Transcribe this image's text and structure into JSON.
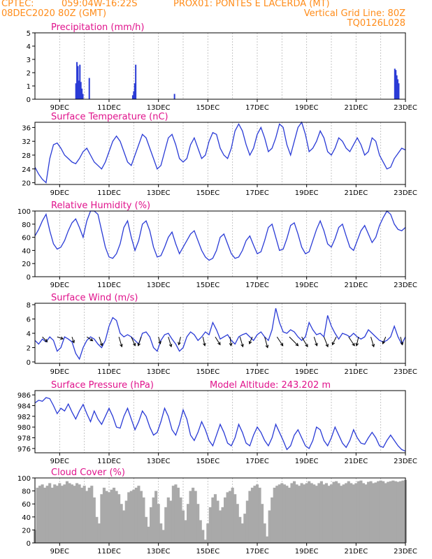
{
  "header": {
    "source": "CPTEC:",
    "coords": "059:04W-16:22S",
    "station": "PROX01: PONTES E LACERDA (MT)",
    "run": "08DEC2020 80Z (GMT)",
    "grid_note": "Vertical Grid Line: 80Z",
    "model_code": "TQ0126L028"
  },
  "colors": {
    "header": "#ff8c1a",
    "title": "#e0138c",
    "series": "#2a3bd6",
    "cloud": "#a9a9a9",
    "wind_arrow": "#000000"
  },
  "x_tick_labels": [
    "9DEC",
    "11DEC",
    "13DEC",
    "15DEC",
    "17DEC",
    "19DEC",
    "21DEC",
    "23DEC"
  ],
  "x_axis": {
    "start": "08DEC2020",
    "end": "23DEC2020",
    "grid_every_days": 1
  },
  "chart_data": [
    {
      "id": "precip",
      "type": "bar",
      "title": "Precipitation (mm/h)",
      "ylim": [
        0,
        5
      ],
      "yticks": [
        0,
        1,
        2,
        3,
        4,
        5
      ],
      "x_days": [
        1.66,
        1.7,
        1.74,
        1.78,
        1.82,
        1.86,
        1.9,
        1.94,
        2.2,
        3.96,
        4.0,
        4.04,
        4.08,
        5.65,
        14.57,
        14.61,
        14.65,
        14.69,
        14.73
      ],
      "values": [
        1.2,
        2.8,
        2.5,
        1.4,
        2.6,
        1.3,
        0.8,
        0.4,
        1.6,
        0.3,
        0.6,
        1.2,
        2.6,
        0.4,
        2.3,
        2.2,
        1.8,
        1.5,
        1.2
      ]
    },
    {
      "id": "temp",
      "type": "line",
      "title": "Surface Temperature (nC)",
      "ylim": [
        19.5,
        37.5
      ],
      "yticks": [
        20,
        24,
        28,
        32,
        36
      ],
      "x_days": [
        0,
        0.15,
        0.3,
        0.45,
        0.6,
        0.75,
        0.9,
        1.05,
        1.2,
        1.35,
        1.5,
        1.65,
        1.8,
        1.95,
        2.1,
        2.25,
        2.4,
        2.55,
        2.7,
        2.85,
        3.0,
        3.15,
        3.3,
        3.45,
        3.6,
        3.75,
        3.9,
        4.05,
        4.2,
        4.35,
        4.5,
        4.65,
        4.8,
        4.95,
        5.1,
        5.25,
        5.4,
        5.55,
        5.7,
        5.85,
        6.0,
        6.15,
        6.3,
        6.45,
        6.6,
        6.75,
        6.9,
        7.05,
        7.2,
        7.35,
        7.5,
        7.65,
        7.8,
        7.95,
        8.1,
        8.25,
        8.4,
        8.55,
        8.7,
        8.85,
        9.0,
        9.15,
        9.3,
        9.45,
        9.6,
        9.75,
        9.9,
        10.05,
        10.2,
        10.35,
        10.5,
        10.65,
        10.8,
        10.95,
        11.1,
        11.25,
        11.4,
        11.55,
        11.7,
        11.85,
        12.0,
        12.15,
        12.3,
        12.45,
        12.6,
        12.75,
        12.9,
        13.05,
        13.2,
        13.35,
        13.5,
        13.65,
        13.8,
        13.95,
        14.1,
        14.25,
        14.4,
        14.55,
        14.7,
        14.85,
        15.0
      ],
      "values": [
        24.5,
        22.5,
        21,
        20,
        27,
        31,
        31.5,
        30,
        28,
        27,
        26,
        25.5,
        27,
        29,
        30,
        28,
        26,
        25,
        24,
        26,
        29,
        32,
        33.5,
        32,
        29,
        26,
        25,
        28,
        31,
        34,
        33,
        30,
        27,
        24,
        25,
        29,
        33,
        34,
        31,
        27,
        26,
        27,
        31,
        33,
        30,
        27,
        28,
        32,
        34.5,
        34,
        30,
        28,
        27,
        30,
        35,
        37,
        35,
        31,
        28,
        30,
        34,
        36,
        33,
        29,
        30,
        33,
        37,
        36,
        31,
        28,
        32,
        36,
        37.5,
        34,
        29,
        30,
        32,
        35,
        33,
        29,
        28,
        30,
        33,
        32,
        30,
        29,
        31,
        33,
        31,
        28,
        29,
        33,
        32,
        28,
        26,
        24,
        24.5,
        27,
        28.5,
        30,
        29.5
      ]
    },
    {
      "id": "rh",
      "type": "line",
      "title": "Relative Humidity (%)",
      "ylim": [
        0,
        100
      ],
      "yticks": [
        0,
        20,
        40,
        60,
        80,
        100
      ],
      "x_days": [
        0,
        0.15,
        0.3,
        0.45,
        0.6,
        0.75,
        0.9,
        1.05,
        1.2,
        1.35,
        1.5,
        1.65,
        1.8,
        1.95,
        2.1,
        2.25,
        2.4,
        2.55,
        2.7,
        2.85,
        3.0,
        3.15,
        3.3,
        3.45,
        3.6,
        3.75,
        3.9,
        4.05,
        4.2,
        4.35,
        4.5,
        4.65,
        4.8,
        4.95,
        5.1,
        5.25,
        5.4,
        5.55,
        5.7,
        5.85,
        6.0,
        6.15,
        6.3,
        6.45,
        6.6,
        6.75,
        6.9,
        7.05,
        7.2,
        7.35,
        7.5,
        7.65,
        7.8,
        7.95,
        8.1,
        8.25,
        8.4,
        8.55,
        8.7,
        8.85,
        9.0,
        9.15,
        9.3,
        9.45,
        9.6,
        9.75,
        9.9,
        10.05,
        10.2,
        10.35,
        10.5,
        10.65,
        10.8,
        10.95,
        11.1,
        11.25,
        11.4,
        11.55,
        11.7,
        11.85,
        12.0,
        12.15,
        12.3,
        12.45,
        12.6,
        12.75,
        12.9,
        13.05,
        13.2,
        13.35,
        13.5,
        13.65,
        13.8,
        13.95,
        14.1,
        14.25,
        14.4,
        14.55,
        14.7,
        14.85,
        15.0
      ],
      "values": [
        62,
        72,
        85,
        95,
        70,
        50,
        42,
        45,
        55,
        70,
        82,
        88,
        75,
        60,
        85,
        100,
        100,
        95,
        70,
        45,
        30,
        28,
        35,
        50,
        75,
        85,
        60,
        40,
        55,
        80,
        85,
        70,
        45,
        30,
        32,
        45,
        60,
        68,
        50,
        35,
        45,
        55,
        65,
        70,
        55,
        40,
        30,
        25,
        28,
        40,
        60,
        65,
        50,
        35,
        28,
        30,
        40,
        55,
        62,
        48,
        35,
        38,
        55,
        75,
        80,
        60,
        40,
        42,
        58,
        78,
        82,
        65,
        45,
        35,
        38,
        55,
        72,
        85,
        70,
        50,
        45,
        58,
        75,
        80,
        62,
        45,
        40,
        55,
        70,
        78,
        65,
        52,
        60,
        78,
        90,
        100,
        95,
        80,
        72,
        70,
        75
      ]
    },
    {
      "id": "wind",
      "type": "line",
      "title": "Surface Wind (m/s)",
      "ylim": [
        -0.2,
        8.2
      ],
      "yticks": [
        0,
        2,
        4,
        6,
        8
      ],
      "x_days": [
        0,
        0.15,
        0.3,
        0.45,
        0.6,
        0.75,
        0.9,
        1.05,
        1.2,
        1.35,
        1.5,
        1.65,
        1.8,
        1.95,
        2.1,
        2.25,
        2.4,
        2.55,
        2.7,
        2.85,
        3.0,
        3.15,
        3.3,
        3.45,
        3.6,
        3.75,
        3.9,
        4.05,
        4.2,
        4.35,
        4.5,
        4.65,
        4.8,
        4.95,
        5.1,
        5.25,
        5.4,
        5.55,
        5.7,
        5.85,
        6.0,
        6.15,
        6.3,
        6.45,
        6.6,
        6.75,
        6.9,
        7.05,
        7.2,
        7.35,
        7.5,
        7.65,
        7.8,
        7.95,
        8.1,
        8.25,
        8.4,
        8.55,
        8.7,
        8.85,
        9.0,
        9.15,
        9.3,
        9.45,
        9.6,
        9.75,
        9.9,
        10.05,
        10.2,
        10.35,
        10.5,
        10.65,
        10.8,
        10.95,
        11.1,
        11.25,
        11.4,
        11.55,
        11.7,
        11.85,
        12.0,
        12.15,
        12.3,
        12.45,
        12.6,
        12.75,
        12.9,
        13.05,
        13.2,
        13.35,
        13.5,
        13.65,
        13.8,
        13.95,
        14.1,
        14.25,
        14.4,
        14.55,
        14.7,
        14.85,
        15.0
      ],
      "values": [
        3,
        2.5,
        3.2,
        2.8,
        3.5,
        3,
        1.5,
        2,
        3.5,
        3.2,
        2.8,
        1.2,
        0.4,
        2,
        3,
        3.5,
        3.2,
        2.5,
        2,
        3,
        5,
        6.2,
        5.8,
        4,
        3.5,
        3.8,
        3.5,
        3,
        2.5,
        4,
        4.2,
        3.5,
        2,
        1.5,
        3,
        3.8,
        4,
        3.2,
        2.5,
        1.5,
        2,
        3.5,
        4.2,
        3.8,
        3,
        3.5,
        4.2,
        3.8,
        5.5,
        4.5,
        3.2,
        3.5,
        3.8,
        3,
        2.5,
        3.5,
        3.8,
        4,
        3.5,
        3,
        3.8,
        4.2,
        3.5,
        3,
        4.5,
        7.5,
        5.5,
        4.2,
        4,
        4.5,
        4.2,
        3.5,
        3,
        3.5,
        5.5,
        4.5,
        3.8,
        4,
        3.5,
        6.5,
        5,
        4,
        3.2,
        4,
        3.8,
        3.5,
        4,
        3.5,
        3.2,
        3.5,
        4.5,
        4,
        3.5,
        3,
        2.8,
        3,
        3.5,
        5,
        3.5,
        2.5,
        3.5
      ],
      "arrows": {
        "x_days": [
          0.3,
          0.9,
          1.5,
          2.1,
          2.6,
          3.4,
          3.9,
          4.3,
          5.0,
          5.4,
          5.9,
          6.8,
          7.3,
          7.9,
          8.3,
          8.8,
          9.3,
          9.8,
          10.3,
          10.8,
          11.3,
          11.7,
          12.2,
          12.7,
          13.1,
          13.6,
          14.2,
          14.8
        ],
        "u": [
          0.5,
          0.6,
          0.2,
          0.6,
          0.3,
          0.3,
          0.4,
          -0.3,
          0.2,
          0.3,
          -0.2,
          0.2,
          0.5,
          0.1,
          0.3,
          -0.3,
          0.3,
          0.6,
          0.9,
          0.6,
          0.3,
          0.4,
          -0.4,
          0.6,
          -0.2,
          0.3,
          -0.3,
          0.2
        ],
        "v": [
          -0.5,
          -0.2,
          -0.6,
          -0.4,
          -0.9,
          -1.0,
          -0.9,
          -0.9,
          -0.7,
          -1.0,
          -0.8,
          -0.9,
          -0.8,
          -0.9,
          -1.0,
          -0.7,
          -1.1,
          -0.9,
          -0.9,
          -1.0,
          -0.9,
          -1.0,
          -0.8,
          -0.9,
          -0.9,
          -1.0,
          -0.7,
          -0.8
        ]
      }
    },
    {
      "id": "pres",
      "type": "line",
      "title": "Surface Pressure (hPa)",
      "annotation": "Model Altitude: 243.202 m",
      "ylim": [
        975.2,
        986.8
      ],
      "yticks": [
        976,
        978,
        980,
        982,
        984,
        986
      ],
      "x_days": [
        0,
        0.15,
        0.3,
        0.45,
        0.6,
        0.75,
        0.9,
        1.05,
        1.2,
        1.35,
        1.5,
        1.65,
        1.8,
        1.95,
        2.1,
        2.25,
        2.4,
        2.55,
        2.7,
        2.85,
        3.0,
        3.15,
        3.3,
        3.45,
        3.6,
        3.75,
        3.9,
        4.05,
        4.2,
        4.35,
        4.5,
        4.65,
        4.8,
        4.95,
        5.1,
        5.25,
        5.4,
        5.55,
        5.7,
        5.85,
        6.0,
        6.15,
        6.3,
        6.45,
        6.6,
        6.75,
        6.9,
        7.05,
        7.2,
        7.35,
        7.5,
        7.65,
        7.8,
        7.95,
        8.1,
        8.25,
        8.4,
        8.55,
        8.7,
        8.85,
        9.0,
        9.15,
        9.3,
        9.45,
        9.6,
        9.75,
        9.9,
        10.05,
        10.2,
        10.35,
        10.5,
        10.65,
        10.8,
        10.95,
        11.1,
        11.25,
        11.4,
        11.55,
        11.7,
        11.85,
        12.0,
        12.15,
        12.3,
        12.45,
        12.6,
        12.75,
        12.9,
        13.05,
        13.2,
        13.35,
        13.5,
        13.65,
        13.8,
        13.95,
        14.1,
        14.25,
        14.4,
        14.55,
        14.7,
        14.85,
        15.0
      ],
      "values": [
        984.5,
        985,
        984.8,
        985.5,
        985.3,
        984,
        982.5,
        983.5,
        983,
        984.3,
        982.8,
        981.5,
        983,
        984.2,
        982.5,
        981,
        983,
        981.5,
        980.5,
        982,
        983.5,
        982,
        980,
        979.8,
        982,
        983.5,
        981.5,
        979.5,
        981,
        983,
        982,
        980,
        978.5,
        979,
        981,
        983.5,
        982,
        979.5,
        978.5,
        980.5,
        983.2,
        981.5,
        978.5,
        977.5,
        979,
        981,
        979.5,
        977.5,
        976.5,
        978.5,
        980.5,
        979,
        977,
        976.5,
        978,
        980.5,
        979,
        977,
        976.5,
        978.5,
        980,
        979,
        977.5,
        976.5,
        978,
        980.5,
        979,
        977.5,
        975.8,
        976.5,
        978.5,
        979.5,
        978,
        976.5,
        976,
        977.5,
        980,
        979.5,
        977.5,
        976.5,
        978,
        980,
        978.5,
        977,
        976.2,
        977.5,
        979.5,
        978,
        977,
        976.8,
        978,
        979,
        978,
        976.5,
        976.2,
        977.5,
        978.5,
        977.5,
        976.5,
        975.8,
        975.5
      ]
    },
    {
      "id": "cloud",
      "type": "bar",
      "title": "Cloud Cover (%)",
      "ylim": [
        0,
        100
      ],
      "yticks": [
        0,
        20,
        40,
        60,
        80,
        100
      ],
      "x_days": [
        0.0,
        0.1,
        0.2,
        0.3,
        0.4,
        0.5,
        0.6,
        0.7,
        0.8,
        0.9,
        1.0,
        1.1,
        1.2,
        1.3,
        1.4,
        1.5,
        1.6,
        1.7,
        1.8,
        1.9,
        2.0,
        2.1,
        2.2,
        2.3,
        2.4,
        2.5,
        2.6,
        2.7,
        2.8,
        2.9,
        3.0,
        3.1,
        3.2,
        3.3,
        3.4,
        3.5,
        3.6,
        3.7,
        3.8,
        3.9,
        4.0,
        4.1,
        4.2,
        4.3,
        4.4,
        4.5,
        4.6,
        4.7,
        4.8,
        4.9,
        5.0,
        5.1,
        5.2,
        5.3,
        5.4,
        5.5,
        5.6,
        5.7,
        5.8,
        5.9,
        6.0,
        6.1,
        6.2,
        6.3,
        6.4,
        6.5,
        6.6,
        6.7,
        6.8,
        6.9,
        7.0,
        7.1,
        7.2,
        7.3,
        7.4,
        7.5,
        7.6,
        7.7,
        7.8,
        7.9,
        8.0,
        8.1,
        8.2,
        8.3,
        8.4,
        8.5,
        8.6,
        8.7,
        8.8,
        8.9,
        9.0,
        9.1,
        9.2,
        9.3,
        9.4,
        9.5,
        9.6,
        9.7,
        9.8,
        9.9,
        10.0,
        10.1,
        10.2,
        10.3,
        10.4,
        10.5,
        10.6,
        10.7,
        10.8,
        10.9,
        11.0,
        11.1,
        11.2,
        11.3,
        11.4,
        11.5,
        11.6,
        11.7,
        11.8,
        11.9,
        12.0,
        12.1,
        12.2,
        12.3,
        12.4,
        12.5,
        12.6,
        12.7,
        12.8,
        12.9,
        13.0,
        13.1,
        13.2,
        13.3,
        13.4,
        13.5,
        13.6,
        13.7,
        13.8,
        13.9,
        14.0,
        14.1,
        14.2,
        14.3,
        14.4,
        14.5,
        14.6,
        14.7,
        14.8,
        14.9,
        15.0
      ],
      "values": [
        20,
        85,
        88,
        90,
        85,
        88,
        92,
        85,
        90,
        88,
        92,
        88,
        90,
        95,
        92,
        90,
        88,
        92,
        90,
        85,
        88,
        80,
        85,
        88,
        70,
        40,
        30,
        75,
        85,
        80,
        78,
        82,
        85,
        80,
        75,
        60,
        50,
        65,
        78,
        80,
        82,
        85,
        88,
        80,
        70,
        40,
        25,
        55,
        70,
        80,
        60,
        30,
        20,
        55,
        70,
        65,
        88,
        90,
        85,
        70,
        50,
        35,
        60,
        80,
        85,
        80,
        60,
        35,
        20,
        5,
        30,
        55,
        70,
        75,
        65,
        50,
        55,
        70,
        78,
        80,
        85,
        75,
        60,
        40,
        30,
        45,
        65,
        80,
        85,
        88,
        90,
        85,
        60,
        30,
        10,
        50,
        70,
        85,
        88,
        90,
        92,
        90,
        88,
        85,
        92,
        95,
        90,
        88,
        92,
        90,
        92,
        95,
        92,
        90,
        88,
        92,
        95,
        90,
        92,
        88,
        90,
        94,
        95,
        92,
        88,
        90,
        92,
        95,
        92,
        90,
        92,
        95,
        96,
        92,
        90,
        94,
        95,
        92,
        93,
        95,
        96,
        95,
        92,
        94,
        95,
        96,
        95,
        94,
        95,
        96,
        97
      ]
    }
  ]
}
